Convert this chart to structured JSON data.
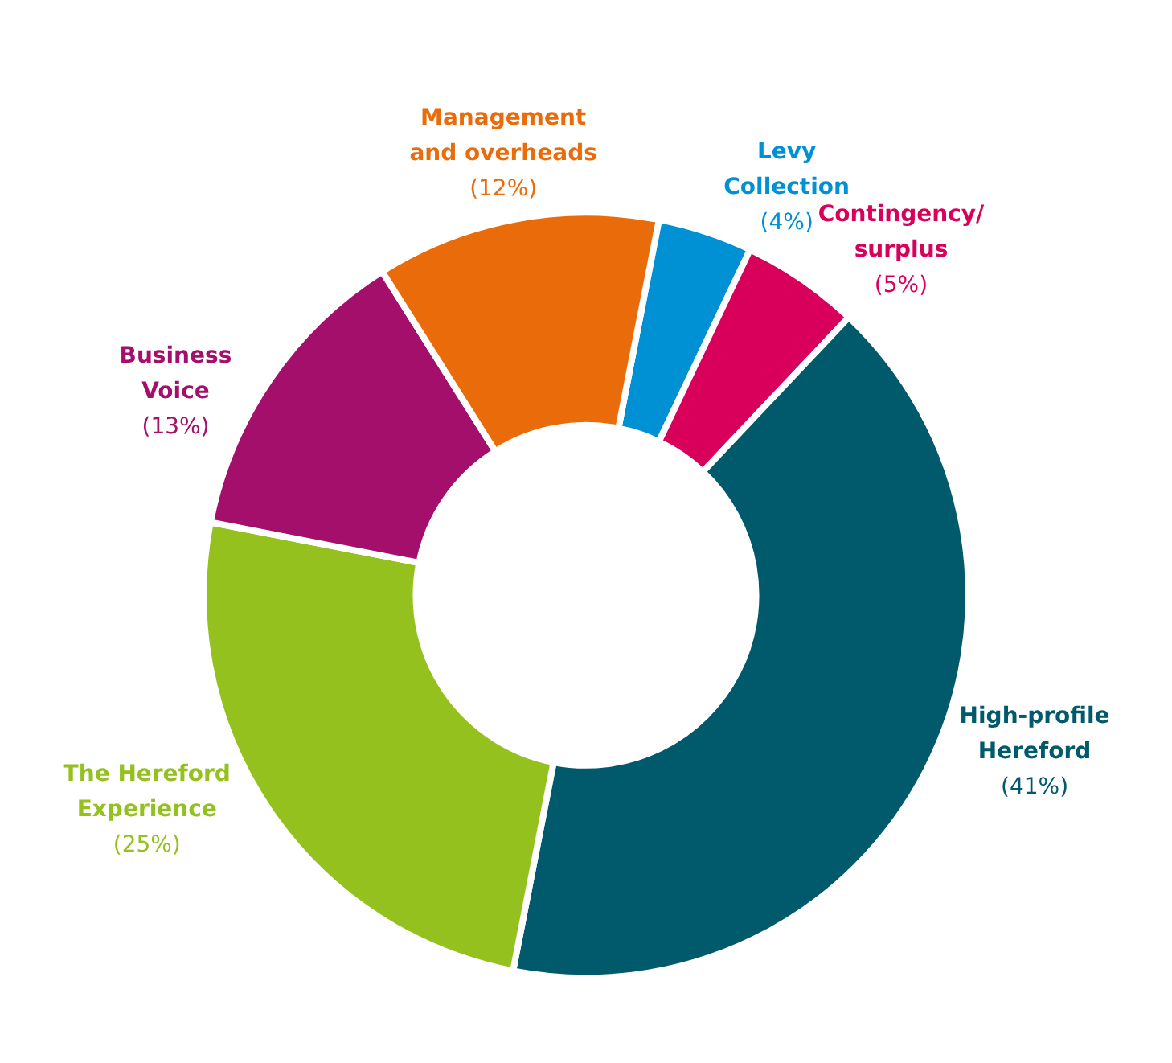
{
  "chart_data": {
    "type": "donut",
    "categories": [
      "Levy Collection",
      "Contingency/ surplus",
      "High-profile Hereford",
      "The Hereford Experience",
      "Business Voice",
      "Management and overheads"
    ],
    "values": [
      4,
      5,
      41,
      25,
      13,
      12
    ],
    "value_labels": [
      "(4%)",
      "(5%)",
      "(41%)",
      "(25%)",
      "(13%)",
      "(12%)"
    ],
    "colors": [
      "#0091d5",
      "#d9005b",
      "#005a6b",
      "#95c11f",
      "#a50f6c",
      "#e96b0a"
    ],
    "legend": false
  }
}
